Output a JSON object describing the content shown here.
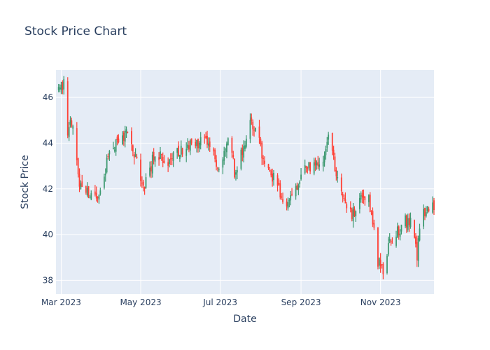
{
  "chart_data": {
    "type": "candlestick",
    "title": "Stock Price Chart",
    "xlabel": "Date",
    "ylabel": "Stock Price",
    "xlim": [
      "2023-02-25",
      "2023-12-12"
    ],
    "ylim": [
      37.4,
      47.2
    ],
    "grid": true,
    "x_ticks": [
      {
        "date": "2023-03-01",
        "label": "Mar 2023"
      },
      {
        "date": "2023-05-01",
        "label": "May 2023"
      },
      {
        "date": "2023-07-01",
        "label": "Jul 2023"
      },
      {
        "date": "2023-09-01",
        "label": "Sep 2023"
      },
      {
        "date": "2023-11-01",
        "label": "Nov 2023"
      }
    ],
    "y_ticks": [
      {
        "value": 38,
        "label": "38"
      },
      {
        "value": 40,
        "label": "40"
      },
      {
        "value": 42,
        "label": "42"
      },
      {
        "value": 44,
        "label": "44"
      },
      {
        "value": 46,
        "label": "46"
      }
    ],
    "colors": {
      "increasing": "#3d9970",
      "decreasing": "#ff4136"
    },
    "series": [
      {
        "anchors": [
          [
            "2023-02-25",
            46.4
          ],
          [
            "2023-03-03",
            46.6
          ],
          [
            "2023-03-05",
            43.8
          ],
          [
            "2023-03-08",
            45.2
          ],
          [
            "2023-03-12",
            44.0
          ],
          [
            "2023-03-15",
            42.2
          ],
          [
            "2023-03-22",
            41.8
          ],
          [
            "2023-03-29",
            41.6
          ],
          [
            "2023-04-05",
            43.1
          ],
          [
            "2023-04-10",
            43.9
          ],
          [
            "2023-04-16",
            44.1
          ],
          [
            "2023-04-22",
            44.6
          ],
          [
            "2023-04-28",
            43.1
          ],
          [
            "2023-05-04",
            42.1
          ],
          [
            "2023-05-12",
            43.6
          ],
          [
            "2023-05-22",
            43.1
          ],
          [
            "2023-06-01",
            43.7
          ],
          [
            "2023-06-10",
            44.0
          ],
          [
            "2023-06-20",
            44.0
          ],
          [
            "2023-06-25",
            43.7
          ],
          [
            "2023-07-01",
            42.4
          ],
          [
            "2023-07-04",
            43.5
          ],
          [
            "2023-07-08",
            44.4
          ],
          [
            "2023-07-12",
            42.7
          ],
          [
            "2023-07-18",
            43.6
          ],
          [
            "2023-07-24",
            44.8
          ],
          [
            "2023-07-30",
            44.4
          ],
          [
            "2023-08-04",
            43.0
          ],
          [
            "2023-08-12",
            42.4
          ],
          [
            "2023-08-20",
            41.3
          ],
          [
            "2023-08-26",
            41.6
          ],
          [
            "2023-09-02",
            42.9
          ],
          [
            "2023-09-08",
            43.0
          ],
          [
            "2023-09-16",
            43.0
          ],
          [
            "2023-09-22",
            44.2
          ],
          [
            "2023-09-28",
            42.8
          ],
          [
            "2023-10-04",
            41.5
          ],
          [
            "2023-10-10",
            40.9
          ],
          [
            "2023-10-16",
            41.4
          ],
          [
            "2023-10-22",
            41.8
          ],
          [
            "2023-10-26",
            40.6
          ],
          [
            "2023-10-30",
            38.8
          ],
          [
            "2023-11-04",
            38.3
          ],
          [
            "2023-11-08",
            39.8
          ],
          [
            "2023-11-14",
            40.1
          ],
          [
            "2023-11-20",
            40.6
          ],
          [
            "2023-11-26",
            40.4
          ],
          [
            "2023-11-29",
            38.9
          ],
          [
            "2023-12-02",
            41.1
          ],
          [
            "2023-12-06",
            40.9
          ],
          [
            "2023-12-12",
            41.3
          ]
        ]
      }
    ]
  }
}
